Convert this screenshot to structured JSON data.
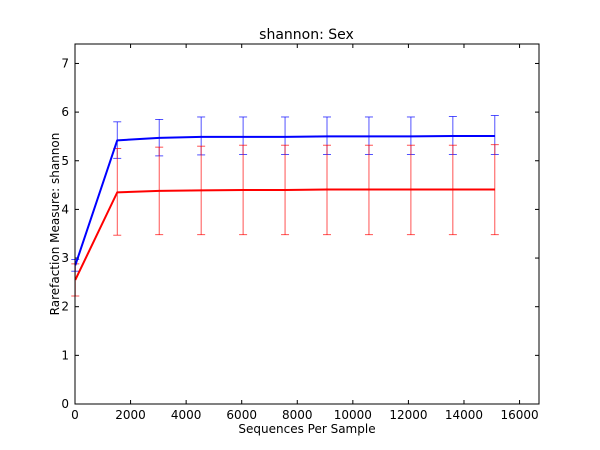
{
  "chart_data": {
    "type": "line",
    "title": "shannon: Sex",
    "xlabel": "Sequences Per Sample",
    "ylabel": "Rarefaction Measure: shannon",
    "xlim": [
      0,
      16700
    ],
    "ylim": [
      0,
      7.4
    ],
    "xticks": [
      0,
      2000,
      4000,
      6000,
      8000,
      10000,
      12000,
      14000,
      16000
    ],
    "yticks": [
      0,
      1,
      2,
      3,
      4,
      5,
      6,
      7
    ],
    "grid": false,
    "legend": "none",
    "x": [
      10,
      1520,
      3030,
      4540,
      6050,
      7560,
      9070,
      10580,
      12090,
      13600,
      15110
    ],
    "series": [
      {
        "color": "#0000ff",
        "y": [
          2.85,
          5.42,
          5.47,
          5.49,
          5.49,
          5.49,
          5.5,
          5.5,
          5.5,
          5.51,
          5.51
        ],
        "upper": [
          2.97,
          5.8,
          5.85,
          5.9,
          5.9,
          5.9,
          5.9,
          5.9,
          5.9,
          5.91,
          5.93
        ],
        "lower": [
          2.73,
          5.05,
          5.1,
          5.12,
          5.13,
          5.13,
          5.13,
          5.13,
          5.13,
          5.13,
          5.13
        ]
      },
      {
        "color": "#ff0000",
        "y": [
          2.55,
          4.35,
          4.38,
          4.39,
          4.4,
          4.4,
          4.41,
          4.41,
          4.41,
          4.41,
          4.41
        ],
        "upper": [
          2.88,
          5.25,
          5.28,
          5.3,
          5.32,
          5.32,
          5.32,
          5.32,
          5.32,
          5.32,
          5.33
        ],
        "lower": [
          2.22,
          3.47,
          3.48,
          3.48,
          3.48,
          3.48,
          3.48,
          3.48,
          3.48,
          3.48,
          3.48
        ]
      }
    ]
  }
}
